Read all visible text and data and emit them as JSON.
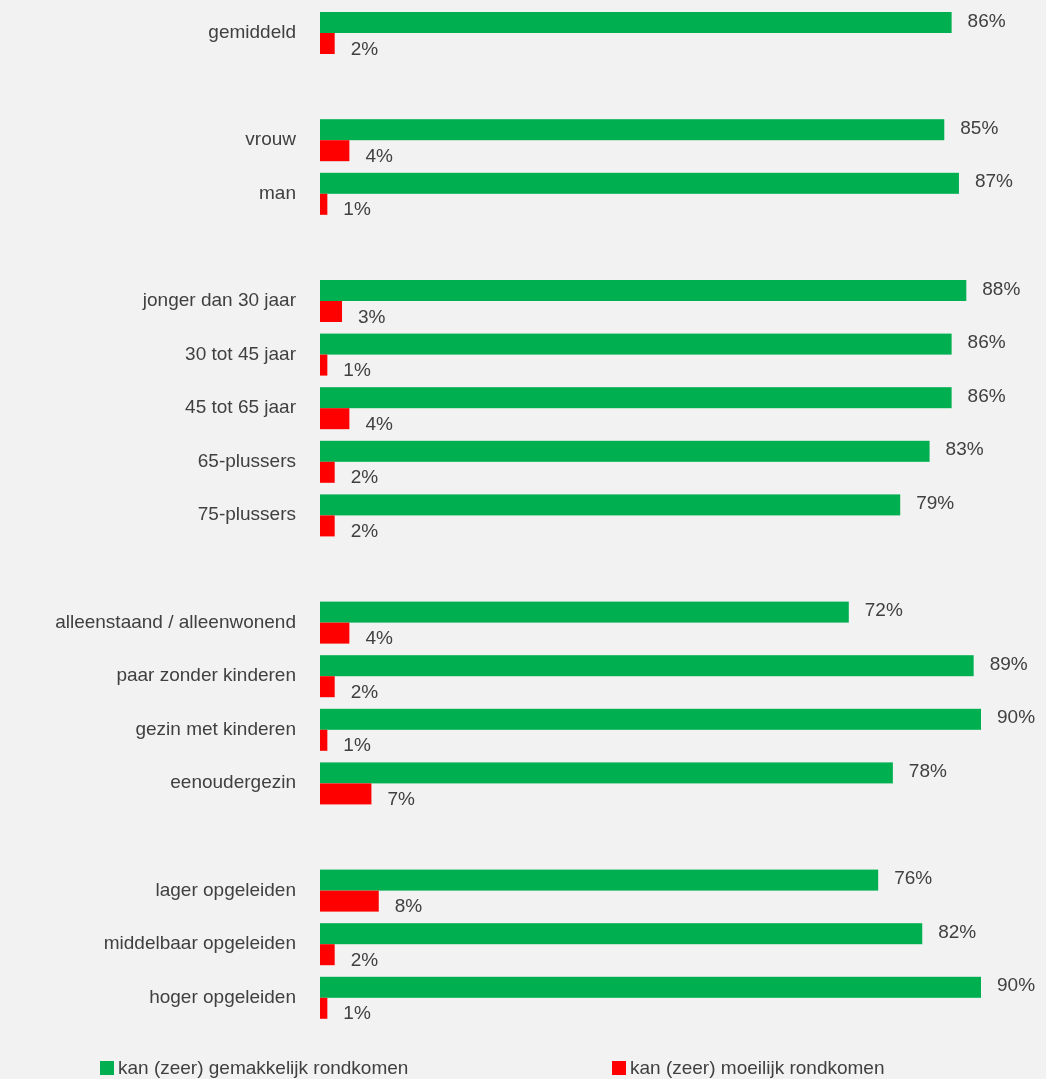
{
  "chart_data": {
    "type": "bar",
    "orientation": "horizontal",
    "legend": "bottom",
    "categories": [
      "gemiddeld",
      null,
      "vrouw",
      "man",
      null,
      "jonger dan 30 jaar",
      "30 tot 45 jaar",
      "45 tot 65 jaar",
      "65-plussers",
      "75-plussers",
      null,
      "alleenstaand / alleenwonend",
      "paar zonder kinderen",
      "gezin met kinderen",
      "eenoudergezin",
      null,
      "lager opgeleiden",
      "middelbaar opgeleiden",
      "hoger opgeleiden"
    ],
    "series": [
      {
        "name": "kan (zeer) gemakkelijk rondkomen",
        "color": "#00b050",
        "values": [
          86,
          null,
          85,
          87,
          null,
          88,
          86,
          86,
          83,
          79,
          null,
          72,
          89,
          90,
          78,
          null,
          76,
          82,
          90
        ],
        "value_labels": [
          "86%",
          null,
          "85%",
          "87%",
          null,
          "88%",
          "86%",
          "86%",
          "83%",
          "79%",
          null,
          "72%",
          "89%",
          "90%",
          "78%",
          null,
          "76%",
          "82%",
          "90%"
        ]
      },
      {
        "name": "kan (zeer) moeilijk rondkomen",
        "color": "#ff0000",
        "values": [
          2,
          null,
          4,
          1,
          null,
          3,
          1,
          4,
          2,
          2,
          null,
          4,
          2,
          1,
          7,
          null,
          8,
          2,
          1
        ],
        "value_labels": [
          "2%",
          null,
          "4%",
          "1%",
          null,
          "3%",
          "1%",
          "4%",
          "2%",
          "2%",
          null,
          "4%",
          "2%",
          "1%",
          "7%",
          null,
          "8%",
          "2%",
          "1%"
        ]
      }
    ]
  }
}
